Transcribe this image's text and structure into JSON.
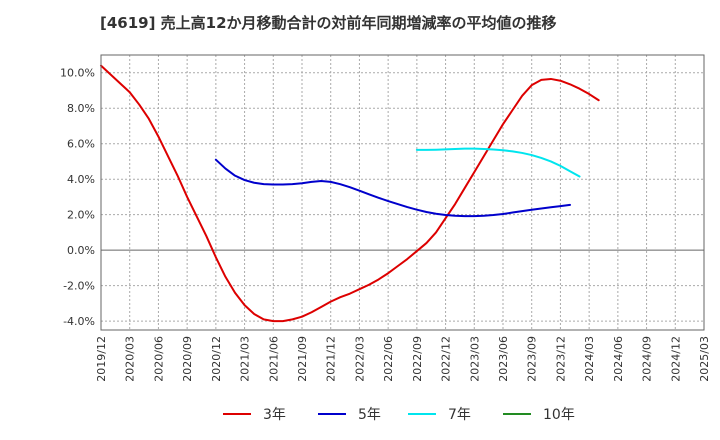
{
  "chart_data": {
    "type": "line",
    "title": "[4619]  売上高12か月移動合計の対前年同期増減率の平均値の推移",
    "xlabel": "",
    "ylabel": "",
    "ylim": [
      -4.5,
      11.0
    ],
    "y_ticks": [
      -4.0,
      -2.0,
      0.0,
      2.0,
      4.0,
      6.0,
      8.0,
      10.0
    ],
    "y_tick_labels": [
      "-4.0%",
      "-2.0%",
      "0.0%",
      "2.0%",
      "4.0%",
      "6.0%",
      "8.0%",
      "10.0%"
    ],
    "x_tick_labels": [
      "2019/12",
      "2020/03",
      "2020/06",
      "2020/09",
      "2020/12",
      "2021/03",
      "2021/06",
      "2021/09",
      "2021/12",
      "2022/03",
      "2022/06",
      "2022/09",
      "2022/12",
      "2023/03",
      "2023/06",
      "2023/09",
      "2023/12",
      "2024/03",
      "2024/06",
      "2024/09",
      "2024/12",
      "2025/03"
    ],
    "grid": true,
    "legend_position": "bottom",
    "series": [
      {
        "name": "3年",
        "color": "#dd0000",
        "start_index": 0,
        "values": [
          10.4,
          9.9,
          9.4,
          8.9,
          8.2,
          7.4,
          6.4,
          5.3,
          4.2,
          3.0,
          1.9,
          0.8,
          -0.4,
          -1.5,
          -2.4,
          -3.1,
          -3.6,
          -3.9,
          -4.0,
          -4.0,
          -3.9,
          -3.75,
          -3.5,
          -3.2,
          -2.9,
          -2.65,
          -2.45,
          -2.2,
          -1.95,
          -1.65,
          -1.3,
          -0.9,
          -0.5,
          -0.05,
          0.4,
          1.0,
          1.8,
          2.6,
          3.5,
          4.4,
          5.3,
          6.2,
          7.1,
          7.9,
          8.7,
          9.3,
          9.6,
          9.65,
          9.55,
          9.35,
          9.1,
          8.8,
          8.45
        ]
      },
      {
        "name": "5年",
        "color": "#0000cc",
        "start_index": 12,
        "values": [
          5.1,
          4.6,
          4.2,
          3.95,
          3.8,
          3.72,
          3.7,
          3.7,
          3.72,
          3.77,
          3.85,
          3.9,
          3.85,
          3.72,
          3.55,
          3.35,
          3.15,
          2.95,
          2.77,
          2.6,
          2.43,
          2.28,
          2.15,
          2.05,
          1.98,
          1.94,
          1.92,
          1.92,
          1.94,
          1.98,
          2.04,
          2.12,
          2.2,
          2.28,
          2.35,
          2.42,
          2.48,
          2.55
        ]
      },
      {
        "name": "7年",
        "color": "#00e5ee",
        "start_index": 33,
        "values": [
          5.65,
          5.65,
          5.66,
          5.68,
          5.7,
          5.72,
          5.72,
          5.7,
          5.67,
          5.63,
          5.57,
          5.48,
          5.36,
          5.2,
          5.0,
          4.75,
          4.45,
          4.15
        ]
      },
      {
        "name": "10年",
        "color": "#228b22",
        "start_index": 0,
        "values": []
      }
    ]
  }
}
